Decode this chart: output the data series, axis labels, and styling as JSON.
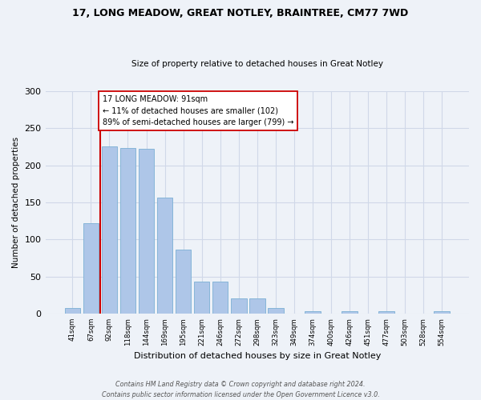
{
  "title1": "17, LONG MEADOW, GREAT NOTLEY, BRAINTREE, CM77 7WD",
  "title2": "Size of property relative to detached houses in Great Notley",
  "xlabel": "Distribution of detached houses by size in Great Notley",
  "ylabel": "Number of detached properties",
  "bar_labels": [
    "41sqm",
    "67sqm",
    "92sqm",
    "118sqm",
    "144sqm",
    "169sqm",
    "195sqm",
    "221sqm",
    "246sqm",
    "272sqm",
    "298sqm",
    "323sqm",
    "349sqm",
    "374sqm",
    "400sqm",
    "426sqm",
    "451sqm",
    "477sqm",
    "503sqm",
    "528sqm",
    "554sqm"
  ],
  "bar_values": [
    7,
    122,
    226,
    223,
    222,
    156,
    86,
    43,
    43,
    20,
    20,
    8,
    0,
    3,
    0,
    3,
    0,
    3,
    0,
    0,
    3
  ],
  "bar_color": "#aec6e8",
  "bar_edge_color": "#7bafd4",
  "grid_color": "#d0d8e8",
  "background_color": "#eef2f8",
  "vline_x": 1.5,
  "vline_color": "#cc0000",
  "annotation_text": "17 LONG MEADOW: 91sqm\n← 11% of detached houses are smaller (102)\n89% of semi-detached houses are larger (799) →",
  "annotation_box_color": "#ffffff",
  "annotation_box_edge": "#cc0000",
  "footer": "Contains HM Land Registry data © Crown copyright and database right 2024.\nContains public sector information licensed under the Open Government Licence v3.0.",
  "ylim": [
    0,
    300
  ],
  "yticks": [
    0,
    50,
    100,
    150,
    200,
    250,
    300
  ]
}
